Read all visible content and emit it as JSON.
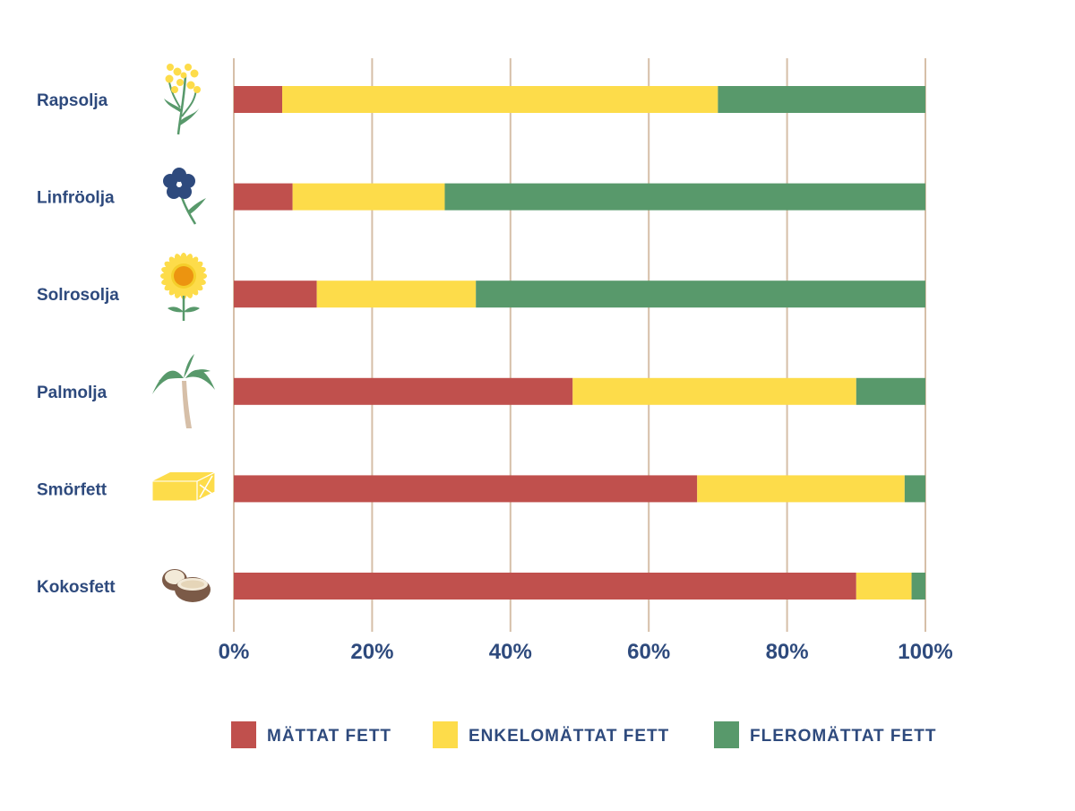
{
  "chart_data": {
    "type": "bar",
    "orientation": "horizontal",
    "stacked": true,
    "categories": [
      "Rapsolja",
      "Linfröolja",
      "Solrosolja",
      "Palmolja",
      "Smörfett",
      "Kokosfett"
    ],
    "category_icons": [
      "rapeseed-flower-icon",
      "flax-flower-icon",
      "sunflower-icon",
      "palm-tree-icon",
      "butter-block-icon",
      "coconut-icon"
    ],
    "series": [
      {
        "name": "MÄTTAT FETT",
        "color": "#c0504d",
        "values": [
          7,
          8.5,
          12,
          49,
          67,
          90
        ]
      },
      {
        "name": "ENKELOMÄTTAT FETT",
        "color": "#fddc4a",
        "values": [
          63,
          22,
          23,
          41,
          30,
          8
        ]
      },
      {
        "name": "FLEROMÄTTAT FETT",
        "color": "#58996b",
        "values": [
          30,
          69.5,
          65,
          10,
          3,
          2
        ]
      }
    ],
    "xticks": [
      "0%",
      "20%",
      "40%",
      "60%",
      "80%",
      "100%"
    ],
    "xlim": [
      0,
      100
    ],
    "grid": "vertical",
    "grid_color": "#d6bfa8",
    "legend_position": "bottom",
    "title": "",
    "xlabel": "",
    "ylabel": ""
  }
}
